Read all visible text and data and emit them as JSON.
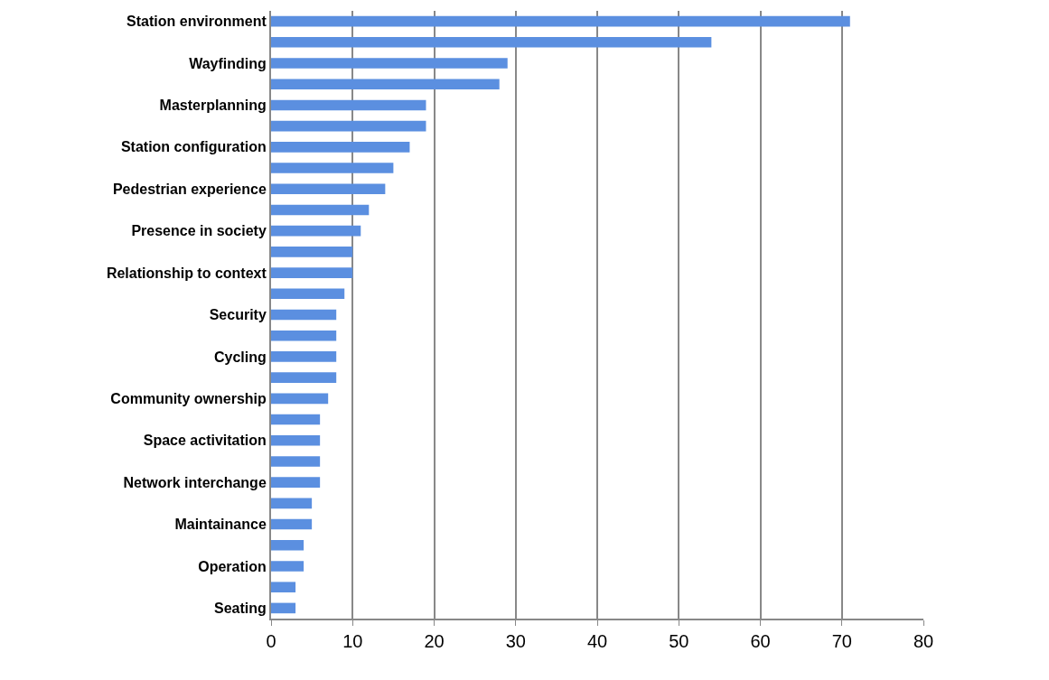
{
  "chart_data": {
    "type": "bar",
    "orientation": "horizontal",
    "categories": [
      "Station environment",
      null,
      "Wayfinding",
      null,
      "Masterplanning",
      null,
      "Station configuration",
      null,
      "Pedestrian experience",
      null,
      "Presence in society",
      null,
      "Relationship to context",
      null,
      "Security",
      null,
      "Cycling",
      null,
      "Community ownership",
      null,
      "Space activitation",
      null,
      "Network interchange",
      null,
      "Maintainance",
      null,
      "Operation",
      null,
      "Seating"
    ],
    "values": [
      71,
      54,
      29,
      28,
      19,
      19,
      17,
      15,
      14,
      12,
      11,
      10,
      10,
      9,
      8,
      8,
      8,
      8,
      7,
      6,
      6,
      6,
      6,
      5,
      5,
      4,
      4,
      3,
      3
    ],
    "color": "#5b8fe0",
    "xlim": [
      0,
      80
    ],
    "xticks": [
      0,
      10,
      20,
      30,
      40,
      50,
      60,
      70,
      80
    ],
    "grid": "x"
  }
}
